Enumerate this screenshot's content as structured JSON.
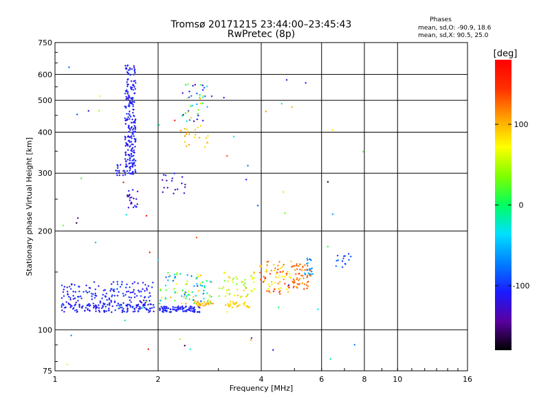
{
  "chart_data": {
    "type": "scatter",
    "title": "Tromsø 20171215 23:44:00–23:45:43",
    "subtitle": "RwPretec (8p)",
    "xlabel": "Frequency [MHz]",
    "ylabel": "Stationary phase Virtual Height [km]",
    "x_scale": "log",
    "y_scale": "log",
    "xlim": [
      1,
      16
    ],
    "ylim": [
      75,
      750
    ],
    "x_ticks": [
      1,
      2,
      4,
      6,
      8,
      10,
      16
    ],
    "y_ticks": [
      75,
      100,
      200,
      300,
      400,
      500,
      600,
      750
    ],
    "grid": true,
    "phase_stats": {
      "header": "Phases",
      "line_o": "mean, sd,O: -90.9, 18.6",
      "line_x": "mean, sd,X:  90.5, 25.0"
    },
    "colorbar": {
      "label": "[deg]",
      "min": -180,
      "max": 180,
      "ticks": [
        {
          "value": 100,
          "label": "100"
        },
        {
          "value": 0,
          "label": "0"
        },
        {
          "value": -100,
          "label": "-100"
        }
      ],
      "colors": [
        "#000000",
        "#5a00a0",
        "#1a1aff",
        "#0080ff",
        "#00e0ff",
        "#00ff60",
        "#80ff00",
        "#ffff00",
        "#ffa000",
        "#ff3000",
        "#ff0000"
      ]
    },
    "clusters": [
      {
        "freq_range": [
          1.6,
          1.72
        ],
        "height_range": [
          300,
          640
        ],
        "count": 220,
        "phase_range": [
          -125,
          -95
        ]
      },
      {
        "freq_range": [
          1.5,
          1.7
        ],
        "height_range": [
          295,
          320
        ],
        "count": 22,
        "phase_range": [
          -120,
          -100
        ]
      },
      {
        "freq_range": [
          1.6,
          1.75
        ],
        "height_range": [
          235,
          270
        ],
        "count": 22,
        "phase_range": [
          -150,
          -100
        ]
      },
      {
        "freq_range": [
          1.04,
          1.95
        ],
        "height_range": [
          113,
          120
        ],
        "count": 140,
        "phase_range": [
          -125,
          -95
        ]
      },
      {
        "freq_range": [
          1.04,
          1.95
        ],
        "height_range": [
          120,
          140
        ],
        "count": 140,
        "phase_range": [
          -125,
          -90
        ]
      },
      {
        "freq_range": [
          2.02,
          2.65
        ],
        "height_range": [
          113,
          118
        ],
        "count": 90,
        "phase_range": [
          -120,
          -95
        ]
      },
      {
        "freq_range": [
          2.0,
          2.9
        ],
        "height_range": [
          120,
          150
        ],
        "count": 90,
        "phase_range": [
          -100,
          110
        ]
      },
      {
        "freq_range": [
          2.55,
          2.95
        ],
        "height_range": [
          118,
          122
        ],
        "count": 28,
        "phase_range": [
          90,
          110
        ]
      },
      {
        "freq_range": [
          3.1,
          3.7
        ],
        "height_range": [
          117,
          122
        ],
        "count": 30,
        "phase_range": [
          80,
          100
        ]
      },
      {
        "freq_range": [
          3.0,
          3.85
        ],
        "height_range": [
          125,
          150
        ],
        "count": 50,
        "phase_range": [
          30,
          110
        ]
      },
      {
        "freq_range": [
          3.95,
          4.9
        ],
        "height_range": [
          128,
          162
        ],
        "count": 70,
        "phase_range": [
          70,
          150
        ]
      },
      {
        "freq_range": [
          4.9,
          5.6
        ],
        "height_range": [
          132,
          160
        ],
        "count": 55,
        "phase_range": [
          110,
          140
        ]
      },
      {
        "freq_range": [
          5.3,
          5.7
        ],
        "height_range": [
          145,
          168
        ],
        "count": 18,
        "phase_range": [
          -95,
          -40
        ]
      },
      {
        "freq_range": [
          6.6,
          7.4
        ],
        "height_range": [
          155,
          175
        ],
        "count": 14,
        "phase_range": [
          -100,
          -70
        ]
      },
      {
        "freq_range": [
          2.35,
          2.8
        ],
        "height_range": [
          430,
          560
        ],
        "count": 40,
        "phase_range": [
          -150,
          100
        ]
      },
      {
        "freq_range": [
          2.3,
          2.85
        ],
        "height_range": [
          360,
          420
        ],
        "count": 22,
        "phase_range": [
          80,
          120
        ]
      },
      {
        "freq_range": [
          2.05,
          2.4
        ],
        "height_range": [
          260,
          300
        ],
        "count": 18,
        "phase_range": [
          -140,
          -100
        ]
      },
      {
        "freq_range": [
          1.02,
          8.0
        ],
        "height_range": [
          78,
          640
        ],
        "count": 60,
        "phase_range": [
          -180,
          180
        ]
      }
    ]
  }
}
